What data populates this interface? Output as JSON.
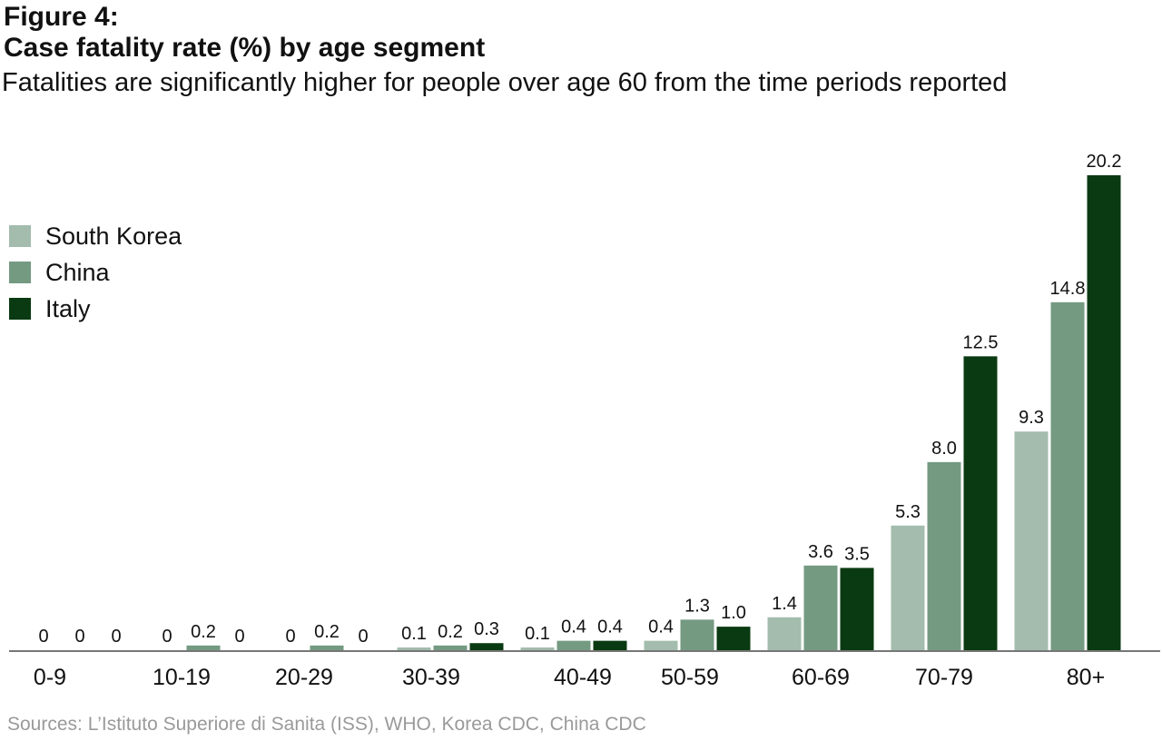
{
  "figure_label": "Figure 4:",
  "chart_data": {
    "type": "bar",
    "title": "Case fatality rate (%) by age segment",
    "subtitle": "Fatalities are significantly higher for people over age 60 from the time periods reported",
    "categories": [
      "0-9",
      "10-19",
      "20-29",
      "30-39",
      "40-49",
      "50-59",
      "60-69",
      "70-79",
      "80+"
    ],
    "series": [
      {
        "name": "South Korea",
        "color": "#a3bcad",
        "values": [
          0,
          0,
          0,
          0.1,
          0.1,
          0.4,
          1.4,
          5.3,
          9.3
        ],
        "labels": [
          "0",
          "0",
          "0",
          "0.1",
          "0.1",
          "0.4",
          "1.4",
          "5.3",
          "9.3"
        ]
      },
      {
        "name": "China",
        "color": "#749a82",
        "values": [
          0,
          0.2,
          0.2,
          0.2,
          0.4,
          1.3,
          3.6,
          8.0,
          14.8
        ],
        "labels": [
          "0",
          "0.2",
          "0.2",
          "0.2",
          "0.4",
          "1.3",
          "3.6",
          "8.0",
          "14.8"
        ]
      },
      {
        "name": "Italy",
        "color": "#0a3a12",
        "values": [
          0,
          0,
          0,
          0.3,
          0.4,
          1.0,
          3.5,
          12.5,
          20.2
        ],
        "labels": [
          "0",
          "0",
          "0",
          "0.3",
          "0.4",
          "1.0",
          "3.5",
          "12.5",
          "20.2"
        ]
      }
    ],
    "ylim": [
      0,
      20.2
    ],
    "grid": false,
    "legend_position": "left"
  },
  "source": "Sources: L’Istituto Superiore di Sanita (ISS), WHO, Korea CDC, China CDC"
}
